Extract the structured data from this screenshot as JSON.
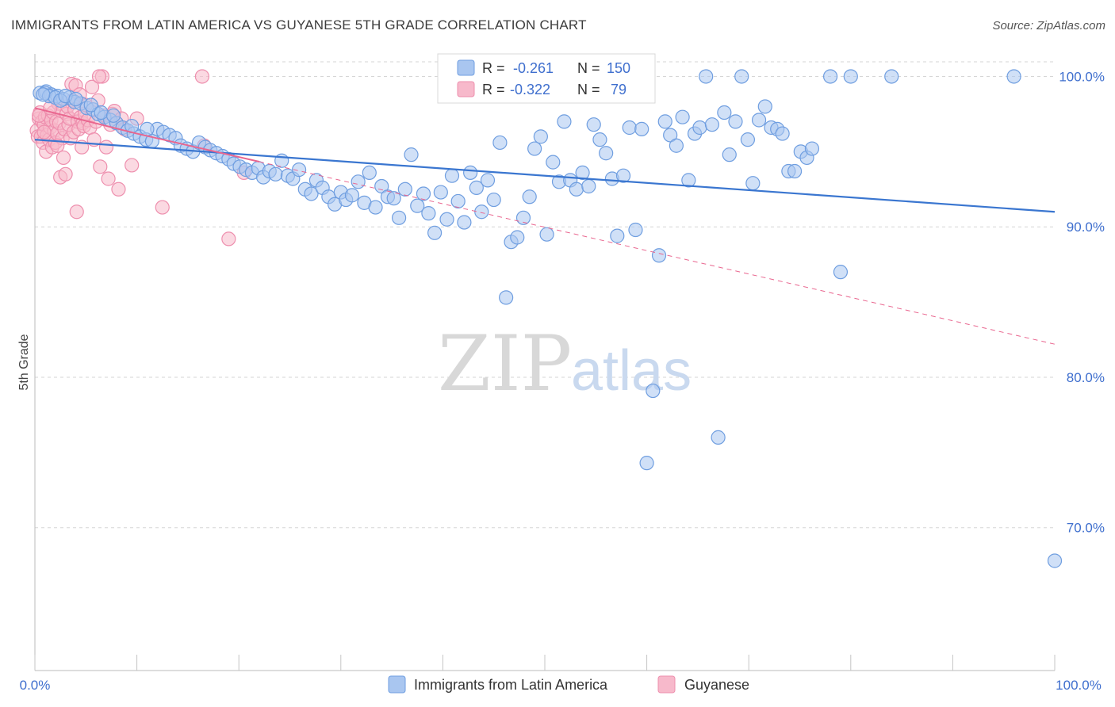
{
  "title": "IMMIGRANTS FROM LATIN AMERICA VS GUYANESE 5TH GRADE CORRELATION CHART",
  "source": "Source: ZipAtlas.com",
  "watermark": {
    "zip": "ZIP",
    "atlas": "atlas"
  },
  "colors": {
    "blue_fill": "#a9c6f0",
    "blue_stroke": "#6f9ee0",
    "blue_line": "#3a76d0",
    "pink_fill": "#f7b9cb",
    "pink_stroke": "#ee8fae",
    "pink_line": "#e9668f",
    "label": "#3f6fce",
    "grid": "#d6d6d6"
  },
  "legend": {
    "r_label": "R =",
    "n_label": "N =",
    "series": [
      {
        "r": "-0.261",
        "n": "150"
      },
      {
        "r": "-0.322",
        "n": " 79"
      }
    ]
  },
  "bottom_legend": [
    "Immigrants from Latin America",
    "Guyanese"
  ],
  "chart_data": {
    "type": "scatter",
    "title": "IMMIGRANTS FROM LATIN AMERICA VS GUYANESE 5TH GRADE CORRELATION CHART",
    "xlabel": "",
    "ylabel": "5th Grade",
    "xlim": [
      0,
      100
    ],
    "ylim": [
      60.5,
      101.5
    ],
    "x_tick_labels": [
      "0.0%",
      "100.0%"
    ],
    "y_ticks": [
      70,
      80,
      90,
      100
    ],
    "y_tick_labels": [
      "70.0%",
      "80.0%",
      "90.0%",
      "100.0%"
    ],
    "grid": true,
    "series": [
      {
        "name": "Immigrants from Latin America",
        "r": -0.261,
        "n": 150,
        "trend": {
          "x": [
            0,
            100
          ],
          "y": [
            95.8,
            91.0
          ],
          "style": "solid"
        },
        "points": [
          [
            0.5,
            98.9
          ],
          [
            1.1,
            99.0
          ],
          [
            1.6,
            98.8
          ],
          [
            2.2,
            98.7
          ],
          [
            2.8,
            98.5
          ],
          [
            3.4,
            98.6
          ],
          [
            3.9,
            98.3
          ],
          [
            4.5,
            98.2
          ],
          [
            5.1,
            97.9
          ],
          [
            5.7,
            97.8
          ],
          [
            6.2,
            97.5
          ],
          [
            6.8,
            97.3
          ],
          [
            7.4,
            97.1
          ],
          [
            8.0,
            96.9
          ],
          [
            8.6,
            96.6
          ],
          [
            9.1,
            96.4
          ],
          [
            9.7,
            96.2
          ],
          [
            10.3,
            96.0
          ],
          [
            10.9,
            95.8
          ],
          [
            11.5,
            95.7
          ],
          [
            12.0,
            96.5
          ],
          [
            12.6,
            96.3
          ],
          [
            13.2,
            96.1
          ],
          [
            13.8,
            95.9
          ],
          [
            14.3,
            95.4
          ],
          [
            14.9,
            95.2
          ],
          [
            15.5,
            95.0
          ],
          [
            16.1,
            95.6
          ],
          [
            16.7,
            95.3
          ],
          [
            17.2,
            95.1
          ],
          [
            17.8,
            94.9
          ],
          [
            18.4,
            94.7
          ],
          [
            19.0,
            94.5
          ],
          [
            19.5,
            94.2
          ],
          [
            20.1,
            94.0
          ],
          [
            20.7,
            93.8
          ],
          [
            21.3,
            93.6
          ],
          [
            21.9,
            93.9
          ],
          [
            22.4,
            93.3
          ],
          [
            23.0,
            93.7
          ],
          [
            23.6,
            93.5
          ],
          [
            24.2,
            94.4
          ],
          [
            24.8,
            93.4
          ],
          [
            25.3,
            93.2
          ],
          [
            25.9,
            93.8
          ],
          [
            26.5,
            92.5
          ],
          [
            27.1,
            92.2
          ],
          [
            27.6,
            93.1
          ],
          [
            28.2,
            92.6
          ],
          [
            28.8,
            92.0
          ],
          [
            29.4,
            91.5
          ],
          [
            30.0,
            92.3
          ],
          [
            30.5,
            91.8
          ],
          [
            31.1,
            92.1
          ],
          [
            31.7,
            93.0
          ],
          [
            32.3,
            91.6
          ],
          [
            32.8,
            93.6
          ],
          [
            33.4,
            91.3
          ],
          [
            34.0,
            92.7
          ],
          [
            34.6,
            92.0
          ],
          [
            35.2,
            91.9
          ],
          [
            35.7,
            90.6
          ],
          [
            36.3,
            92.5
          ],
          [
            36.9,
            94.8
          ],
          [
            37.5,
            91.4
          ],
          [
            38.1,
            92.2
          ],
          [
            38.6,
            90.9
          ],
          [
            39.2,
            89.6
          ],
          [
            39.8,
            92.3
          ],
          [
            40.4,
            90.5
          ],
          [
            40.9,
            93.4
          ],
          [
            41.5,
            91.7
          ],
          [
            42.1,
            90.3
          ],
          [
            42.7,
            93.6
          ],
          [
            43.3,
            92.6
          ],
          [
            43.8,
            91.0
          ],
          [
            44.4,
            93.1
          ],
          [
            45.0,
            91.8
          ],
          [
            45.6,
            95.6
          ],
          [
            46.2,
            85.3
          ],
          [
            46.7,
            89.0
          ],
          [
            47.3,
            89.3
          ],
          [
            47.9,
            90.6
          ],
          [
            48.5,
            92.0
          ],
          [
            49.0,
            95.2
          ],
          [
            49.6,
            96.0
          ],
          [
            50.2,
            89.5
          ],
          [
            50.8,
            94.3
          ],
          [
            51.4,
            93.0
          ],
          [
            51.9,
            97.0
          ],
          [
            52.5,
            93.1
          ],
          [
            53.1,
            92.5
          ],
          [
            53.7,
            93.6
          ],
          [
            54.3,
            92.7
          ],
          [
            54.8,
            96.8
          ],
          [
            55.4,
            95.8
          ],
          [
            56.0,
            94.9
          ],
          [
            56.6,
            93.2
          ],
          [
            57.1,
            89.4
          ],
          [
            57.7,
            93.4
          ],
          [
            58.3,
            96.6
          ],
          [
            58.9,
            89.8
          ],
          [
            59.5,
            96.5
          ],
          [
            60.0,
            74.3
          ],
          [
            60.6,
            79.1
          ],
          [
            61.2,
            88.1
          ],
          [
            61.8,
            97.0
          ],
          [
            62.3,
            96.1
          ],
          [
            62.9,
            95.4
          ],
          [
            63.5,
            97.3
          ],
          [
            64.1,
            93.1
          ],
          [
            64.7,
            96.2
          ],
          [
            65.2,
            96.6
          ],
          [
            65.8,
            100.0
          ],
          [
            66.4,
            96.8
          ],
          [
            67.0,
            76.0
          ],
          [
            67.6,
            97.6
          ],
          [
            68.1,
            94.8
          ],
          [
            68.7,
            97.0
          ],
          [
            69.3,
            100.0
          ],
          [
            69.9,
            95.8
          ],
          [
            70.4,
            92.9
          ],
          [
            71.0,
            97.1
          ],
          [
            71.6,
            98.0
          ],
          [
            72.2,
            96.6
          ],
          [
            72.8,
            96.5
          ],
          [
            73.3,
            96.2
          ],
          [
            73.9,
            93.7
          ],
          [
            74.5,
            93.7
          ],
          [
            75.1,
            95.0
          ],
          [
            75.7,
            94.6
          ],
          [
            76.2,
            95.2
          ],
          [
            78.0,
            100.0
          ],
          [
            79.0,
            87.0
          ],
          [
            80.0,
            100.0
          ],
          [
            84.0,
            100.0
          ],
          [
            96.0,
            100.0
          ],
          [
            100.0,
            67.8
          ],
          [
            1.0,
            98.9
          ],
          [
            1.4,
            98.7
          ],
          [
            2.0,
            98.6
          ],
          [
            2.5,
            98.4
          ],
          [
            3.0,
            98.7
          ],
          [
            0.8,
            98.8
          ],
          [
            4.0,
            98.5
          ],
          [
            5.5,
            98.1
          ],
          [
            6.5,
            97.6
          ],
          [
            7.7,
            97.4
          ],
          [
            9.5,
            96.7
          ],
          [
            11.0,
            96.5
          ]
        ]
      },
      {
        "name": "Guyanese",
        "r": -0.322,
        "n": 79,
        "trend": {
          "x": [
            0,
            10,
            100
          ],
          "y": [
            97.9,
            96.2,
            82.2
          ],
          "style": "solid-then-dashed",
          "solid_until_x": 22
        },
        "points": [
          [
            0.2,
            96.4
          ],
          [
            0.3,
            96.0
          ],
          [
            0.4,
            97.2
          ],
          [
            0.5,
            97.6
          ],
          [
            0.6,
            96.0
          ],
          [
            0.7,
            97.0
          ],
          [
            0.8,
            95.6
          ],
          [
            0.9,
            96.8
          ],
          [
            1.0,
            97.3
          ],
          [
            1.1,
            95.0
          ],
          [
            1.2,
            96.1
          ],
          [
            1.3,
            97.4
          ],
          [
            1.4,
            95.8
          ],
          [
            1.5,
            96.6
          ],
          [
            1.6,
            97.1
          ],
          [
            1.7,
            95.3
          ],
          [
            1.8,
            97.6
          ],
          [
            1.9,
            96.4
          ],
          [
            2.0,
            95.6
          ],
          [
            2.1,
            97.0
          ],
          [
            2.2,
            96.2
          ],
          [
            2.3,
            98.2
          ],
          [
            2.4,
            96.9
          ],
          [
            2.5,
            93.3
          ],
          [
            2.6,
            97.7
          ],
          [
            2.7,
            95.9
          ],
          [
            2.8,
            94.6
          ],
          [
            2.9,
            96.5
          ],
          [
            3.0,
            93.5
          ],
          [
            3.1,
            97.5
          ],
          [
            3.2,
            98.0
          ],
          [
            3.3,
            96.8
          ],
          [
            3.4,
            97.2
          ],
          [
            3.5,
            95.9
          ],
          [
            3.6,
            99.5
          ],
          [
            3.7,
            98.4
          ],
          [
            3.8,
            96.3
          ],
          [
            3.9,
            97.8
          ],
          [
            4.0,
            99.4
          ],
          [
            4.1,
            91.0
          ],
          [
            4.2,
            97.0
          ],
          [
            4.3,
            96.5
          ],
          [
            4.4,
            98.8
          ],
          [
            4.5,
            97.3
          ],
          [
            4.6,
            95.3
          ],
          [
            4.7,
            96.9
          ],
          [
            4.8,
            96.7
          ],
          [
            4.9,
            97.5
          ],
          [
            5.0,
            98.1
          ],
          [
            5.2,
            97.1
          ],
          [
            5.4,
            96.6
          ],
          [
            5.6,
            99.3
          ],
          [
            5.8,
            95.8
          ],
          [
            6.0,
            97.0
          ],
          [
            6.2,
            98.4
          ],
          [
            6.4,
            94.0
          ],
          [
            6.6,
            100.0
          ],
          [
            6.8,
            97.4
          ],
          [
            7.0,
            95.3
          ],
          [
            7.2,
            93.2
          ],
          [
            7.4,
            96.8
          ],
          [
            7.6,
            97.5
          ],
          [
            7.8,
            97.7
          ],
          [
            8.0,
            96.9
          ],
          [
            8.2,
            92.5
          ],
          [
            8.5,
            97.2
          ],
          [
            8.8,
            96.5
          ],
          [
            9.5,
            94.1
          ],
          [
            10.0,
            97.2
          ],
          [
            12.5,
            91.3
          ],
          [
            16.4,
            100.0
          ],
          [
            16.6,
            95.4
          ],
          [
            19.0,
            89.2
          ],
          [
            20.5,
            93.6
          ],
          [
            0.4,
            97.4
          ],
          [
            0.9,
            96.3
          ],
          [
            1.5,
            97.9
          ],
          [
            2.2,
            95.4
          ],
          [
            6.3,
            100.0
          ]
        ]
      }
    ]
  }
}
